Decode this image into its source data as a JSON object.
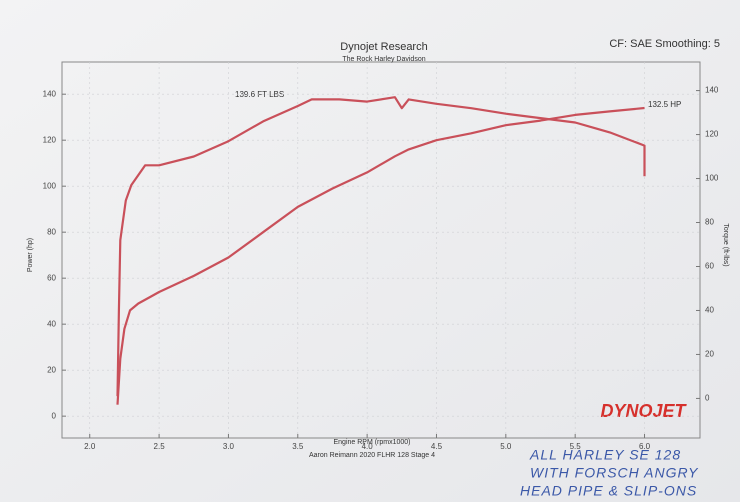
{
  "chart_data": {
    "type": "line",
    "title": "Dynojet Research",
    "subtitle": "The Rock Harley Davidson",
    "header_right": "CF: SAE Smoothing: 5",
    "x_label": "Engine RPM (rpmx1000)",
    "footer": "Aaron Reimann 2020 FLHR 128 Stage 4",
    "y_label": "Power (hp)",
    "y2_label": "Torque (ft-lbs)",
    "logo": "DYNOJET",
    "annotations": [
      "139.6 FT LBS",
      "132.5 HP"
    ],
    "handwritten_note": [
      "ALL HARLEY SE 128",
      "WITH FORSCH ANGRY",
      "HEAD PIPE & SLIP-ONS"
    ],
    "xlim": [
      1.8,
      6.4
    ],
    "xticks": [
      {
        "value": 2,
        "label": "2.0"
      },
      2.5,
      {
        "value": 3,
        "label": "3.0"
      },
      3.5,
      {
        "value": 4,
        "label": "4.0"
      },
      4.5,
      {
        "value": 5,
        "label": "5.0"
      },
      5.5,
      {
        "value": 6,
        "label": "6.0"
      }
    ],
    "ylim": [
      -9.5,
      154
    ],
    "yticks": [
      0,
      20,
      40,
      60,
      80,
      100,
      120,
      140
    ],
    "y2lim": [
      -18,
      153
    ],
    "y2ticks": [
      0,
      20,
      40,
      60,
      80,
      100,
      120,
      140
    ],
    "grid": true,
    "series": [
      {
        "color": "#c9505a",
        "x": [
          2.2,
          2.22,
          2.25,
          2.29,
          2.35,
          2.44,
          2.5,
          2.75,
          3.0,
          3.25,
          3.5,
          3.75,
          4.0,
          4.2,
          4.3,
          4.5,
          4.75,
          5.0,
          5.25,
          5.5,
          5.75,
          6.0
        ],
        "values": [
          5,
          25,
          38,
          46,
          49,
          52,
          54,
          61,
          69,
          80,
          91,
          99,
          106,
          113,
          116,
          120,
          123,
          126.5,
          128.5,
          131,
          132.5,
          134
        ]
      },
      {
        "axis": "y2",
        "color": "#c9505a",
        "x": [
          2.2,
          2.21,
          2.22,
          2.26,
          2.3,
          2.4,
          2.5,
          2.75,
          3.0,
          3.25,
          3.5,
          3.6,
          3.8,
          4.0,
          4.2,
          4.25,
          4.3,
          4.5,
          4.75,
          5.0,
          5.25,
          5.5,
          5.75,
          6.0,
          6.0
        ],
        "values": [
          1,
          40,
          72,
          90,
          97,
          106,
          106,
          110,
          117,
          126,
          133,
          136,
          136,
          135,
          137,
          132,
          136,
          134,
          132,
          129.5,
          127.5,
          125.5,
          121,
          115,
          101
        ]
      }
    ]
  }
}
